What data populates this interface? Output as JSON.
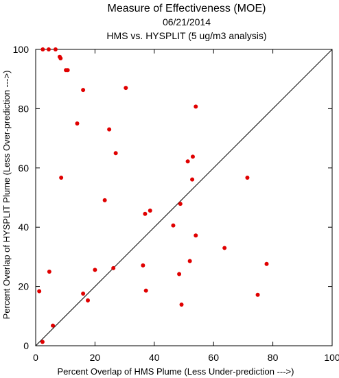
{
  "chart_data": {
    "type": "scatter",
    "title": "Measure of Effectiveness (MOE)",
    "subtitle": "06/21/2014",
    "subtitle2": "HMS vs. HYSPLIT  (5 ug/m3 analysis)",
    "xlabel": "Percent Overlap of HMS Plume (Less Under-prediction --->)",
    "ylabel": "Percent Overlap of HYSPLIT Plume (Less Over-prediction --->)",
    "xlim": [
      0,
      100
    ],
    "ylim": [
      0,
      100
    ],
    "xticks": [
      0,
      20,
      40,
      60,
      80,
      100
    ],
    "yticks": [
      0,
      20,
      40,
      60,
      80,
      100
    ],
    "grid": false,
    "diagonal_line": true,
    "point_color": "#e00000",
    "points": [
      {
        "x": 2.4,
        "y": 100
      },
      {
        "x": 4.4,
        "y": 100
      },
      {
        "x": 6.7,
        "y": 100
      },
      {
        "x": 8.1,
        "y": 97.5
      },
      {
        "x": 8.4,
        "y": 97
      },
      {
        "x": 10.2,
        "y": 93
      },
      {
        "x": 10.8,
        "y": 93
      },
      {
        "x": 16.0,
        "y": 86.3
      },
      {
        "x": 30.4,
        "y": 87
      },
      {
        "x": 54.0,
        "y": 80.7
      },
      {
        "x": 14.0,
        "y": 75
      },
      {
        "x": 24.8,
        "y": 73
      },
      {
        "x": 27.0,
        "y": 65
      },
      {
        "x": 53.0,
        "y": 63.8
      },
      {
        "x": 51.3,
        "y": 62.2
      },
      {
        "x": 8.6,
        "y": 56.7
      },
      {
        "x": 52.8,
        "y": 56.1
      },
      {
        "x": 71.4,
        "y": 56.7
      },
      {
        "x": 23.3,
        "y": 49.1
      },
      {
        "x": 48.8,
        "y": 47.9
      },
      {
        "x": 38.6,
        "y": 45.6
      },
      {
        "x": 36.9,
        "y": 44.5
      },
      {
        "x": 46.4,
        "y": 40.6
      },
      {
        "x": 54.0,
        "y": 37.2
      },
      {
        "x": 63.7,
        "y": 33
      },
      {
        "x": 52.0,
        "y": 28.6
      },
      {
        "x": 77.9,
        "y": 27.6
      },
      {
        "x": 36.2,
        "y": 27.1
      },
      {
        "x": 26.2,
        "y": 26.2
      },
      {
        "x": 20.0,
        "y": 25.6
      },
      {
        "x": 4.6,
        "y": 25
      },
      {
        "x": 48.4,
        "y": 24.2
      },
      {
        "x": 1.2,
        "y": 18.4
      },
      {
        "x": 37.2,
        "y": 18.6
      },
      {
        "x": 16.0,
        "y": 17.6
      },
      {
        "x": 74.9,
        "y": 17.2
      },
      {
        "x": 17.6,
        "y": 15.3
      },
      {
        "x": 49.2,
        "y": 13.9
      },
      {
        "x": 5.8,
        "y": 6.8
      },
      {
        "x": 2.3,
        "y": 1.3
      }
    ]
  }
}
